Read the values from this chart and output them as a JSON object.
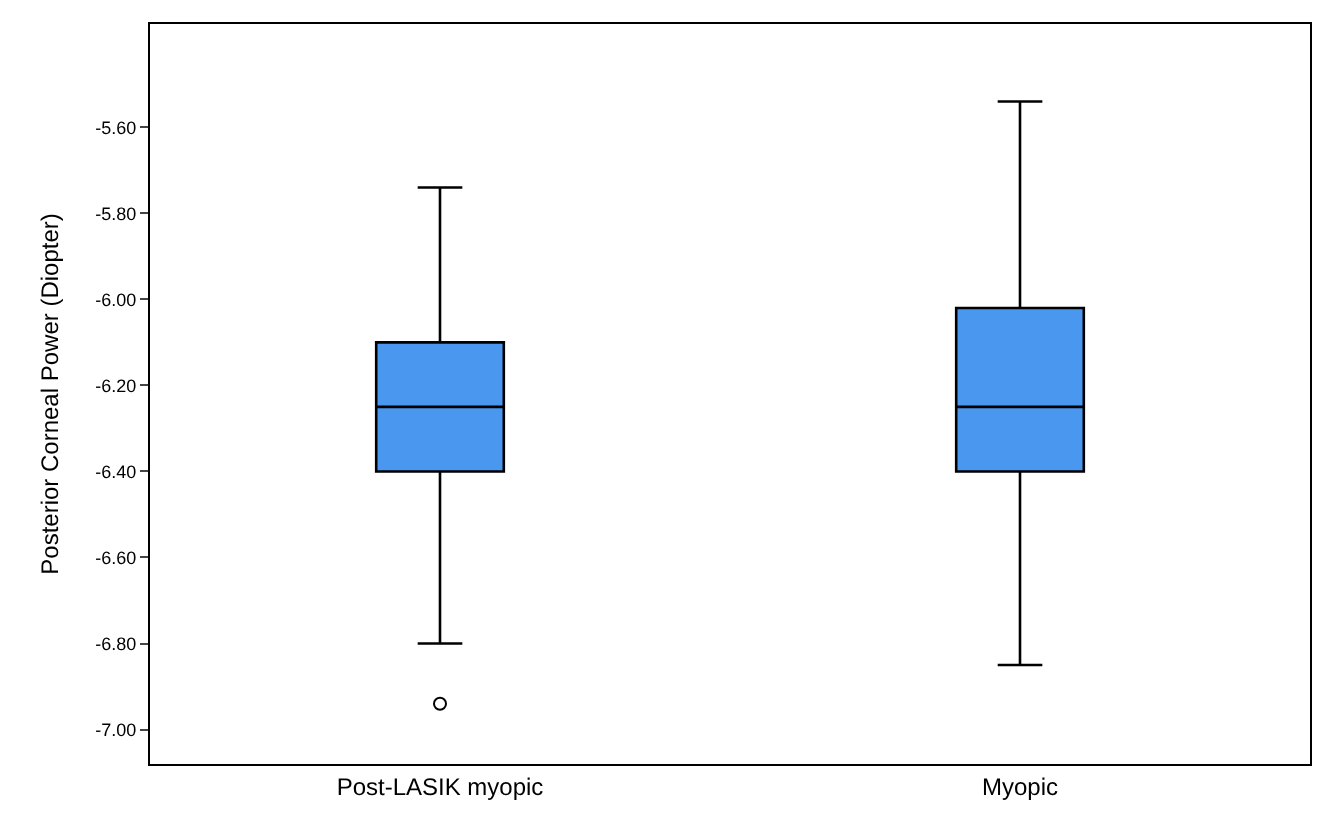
{
  "chart_data": {
    "type": "box",
    "ylabel": "Posterior Corneal Power (Diopter)",
    "categories": [
      "Post-LASIK myopic",
      "Myopic"
    ],
    "boxes": [
      {
        "low": -6.8,
        "q1": -6.4,
        "median": -6.25,
        "q3": -6.1,
        "high": -5.74,
        "outliers": [
          -6.94
        ]
      },
      {
        "low": -6.85,
        "q1": -6.4,
        "median": -6.25,
        "q3": -6.02,
        "high": -5.54
      }
    ],
    "color": "#4a97f0",
    "ylim": [
      -7.08,
      -5.36
    ],
    "yticks": [
      {
        "value": -7.0,
        "label": "-7.00"
      },
      {
        "value": -6.8,
        "label": "-6.80"
      },
      {
        "value": -6.6,
        "label": "-6.60"
      },
      {
        "value": -6.4,
        "label": "-6.40"
      },
      {
        "value": -6.2,
        "label": "-6.20"
      },
      {
        "value": -6.0,
        "label": "-6.00"
      },
      {
        "value": -5.8,
        "label": "-5.80"
      },
      {
        "value": -5.6,
        "label": "-5.60"
      }
    ]
  }
}
